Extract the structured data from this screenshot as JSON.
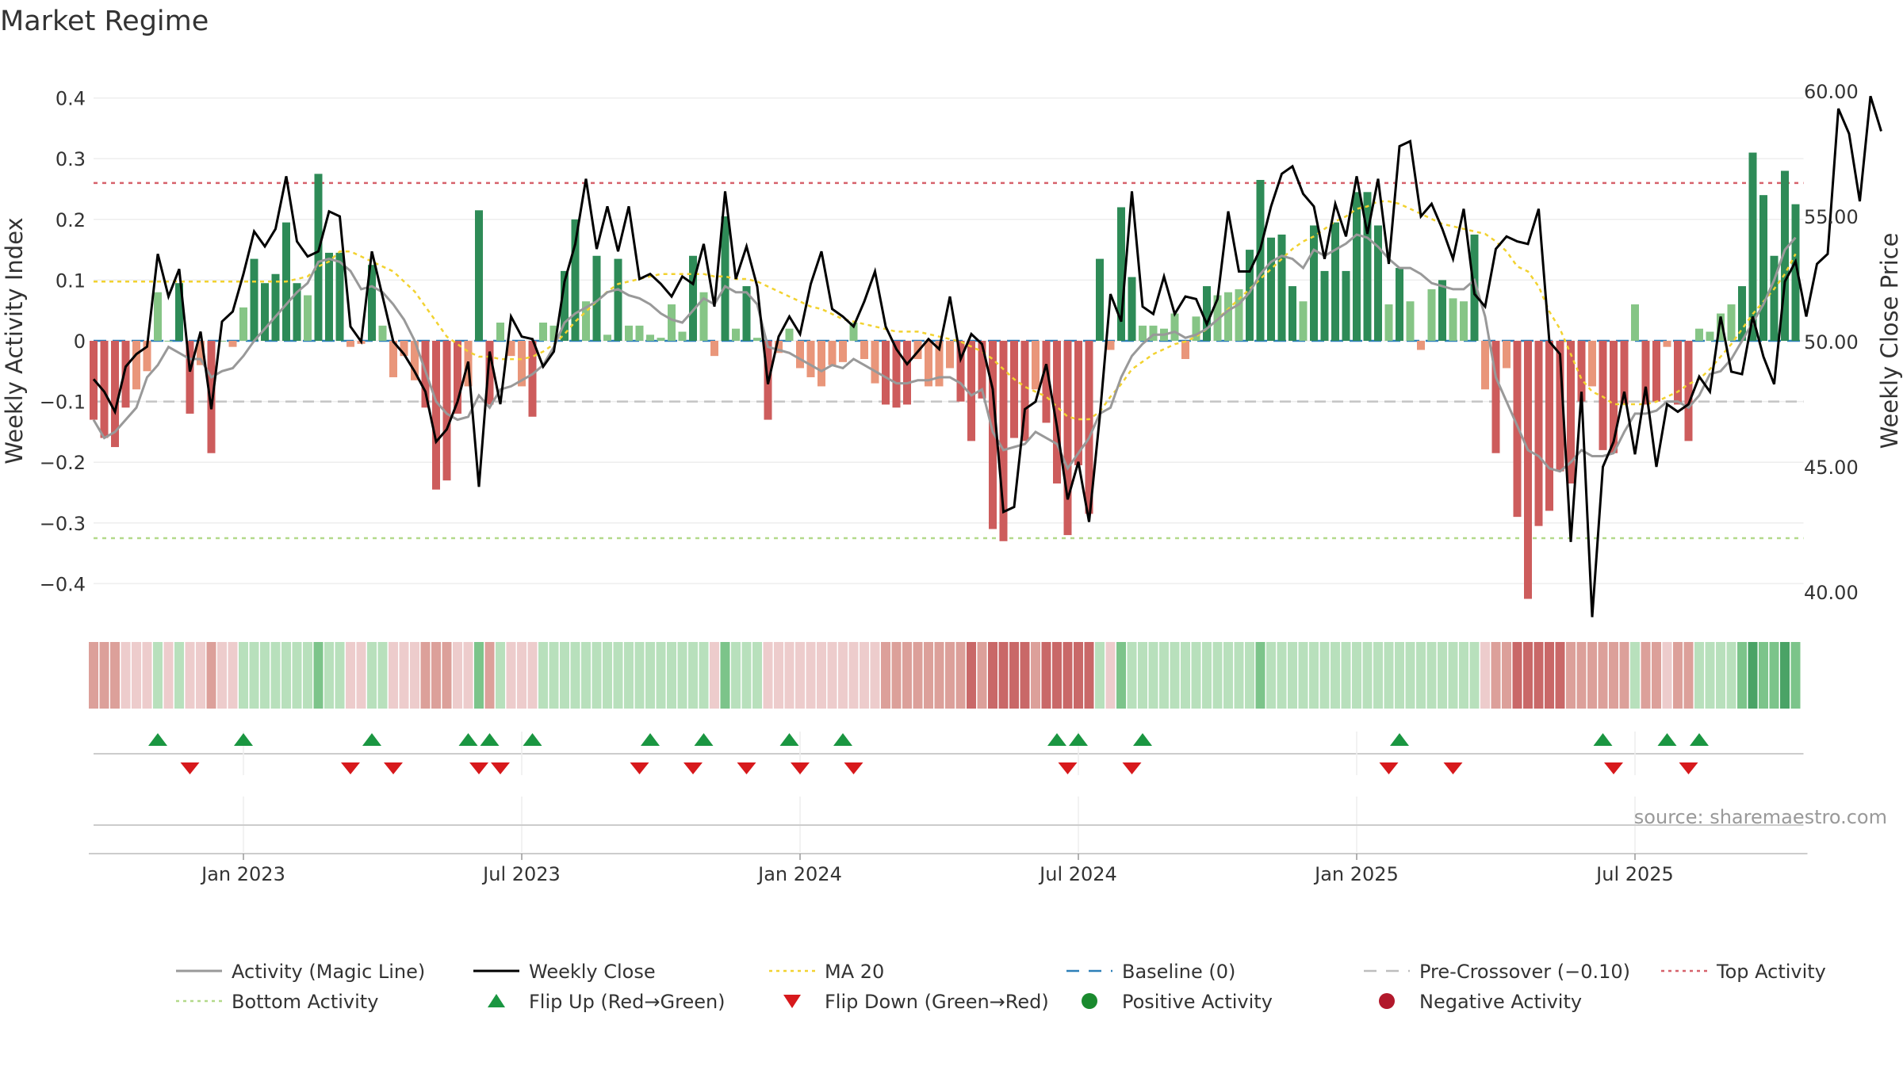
{
  "chart_data": {
    "type": "bar",
    "title": "Market Regime",
    "ylabel_left": "Weekly Activity Index",
    "ylabel_right": "Weekly Close Price",
    "source": "source: sharemaestro.com",
    "ylim_left": [
      -0.46,
      0.46
    ],
    "ylim_right": [
      37.5,
      60.5
    ],
    "yticks_left": [
      "0.4",
      "0.3",
      "0.2",
      "0.1",
      "0",
      "−0.1",
      "−0.2",
      "−0.3",
      "−0.4"
    ],
    "yticks_right": [
      "60.00",
      "55.00",
      "50.00",
      "45.00",
      "40.00"
    ],
    "x_ticks": [
      {
        "label": "Jan 2023",
        "week": 14
      },
      {
        "label": "Jul 2023",
        "week": 40
      },
      {
        "label": "Jan 2024",
        "week": 66
      },
      {
        "label": "Jul 2024",
        "week": 92
      },
      {
        "label": "Jan 2025",
        "week": 118
      },
      {
        "label": "Jul 2025",
        "week": 144
      }
    ],
    "reference_lines": {
      "top_activity": 0.26,
      "bottom_activity": -0.325,
      "pre_crossover": -0.1,
      "baseline": 0
    },
    "activity_bars": [
      -0.13,
      -0.16,
      -0.175,
      -0.11,
      -0.08,
      -0.05,
      0.08,
      0,
      0.095,
      -0.12,
      -0.04,
      -0.185,
      0,
      -0.01,
      0.055,
      0.135,
      0.095,
      0.11,
      0.195,
      0.095,
      0.075,
      0.275,
      0.145,
      0.145,
      -0.01,
      -0.005,
      0.125,
      0.025,
      -0.06,
      -0.025,
      -0.065,
      -0.11,
      -0.245,
      -0.23,
      -0.12,
      -0.075,
      0.215,
      -0.105,
      0.03,
      -0.025,
      -0.075,
      -0.125,
      0.03,
      0.025,
      0.115,
      0.2,
      0.065,
      0.14,
      0.01,
      0.135,
      0.025,
      0.025,
      0.01,
      0.005,
      0.06,
      0.015,
      0.14,
      0.08,
      -0.025,
      0.205,
      0.02,
      0.09,
      0.005,
      -0.13,
      -0.02,
      0.02,
      -0.045,
      -0.06,
      -0.075,
      -0.04,
      -0.035,
      0.03,
      -0.03,
      -0.07,
      -0.105,
      -0.11,
      -0.105,
      -0.03,
      -0.075,
      -0.075,
      -0.045,
      -0.1,
      -0.165,
      -0.095,
      -0.31,
      -0.33,
      -0.16,
      -0.165,
      -0.08,
      -0.135,
      -0.235,
      -0.32,
      -0.205,
      -0.285,
      0.135,
      -0.015,
      0.22,
      0.105,
      0.025,
      0.025,
      0.02,
      0.045,
      -0.03,
      0.04,
      0.09,
      0.075,
      0.08,
      0.085,
      0.15,
      0.265,
      0.17,
      0.175,
      0.09,
      0.065,
      0.19,
      0.115,
      0.195,
      0.115,
      0.245,
      0.245,
      0.19,
      0.06,
      0.12,
      0.065,
      -0.015,
      0.085,
      0.1,
      0.07,
      0.065,
      0.175,
      -0.08,
      -0.185,
      -0.045,
      -0.29,
      -0.425,
      -0.305,
      -0.28,
      -0.215,
      -0.235,
      -0.1,
      -0.075,
      -0.18,
      -0.185,
      -0.105,
      0.06,
      -0.105,
      -0.1,
      -0.01,
      -0.105,
      -0.165,
      0.02,
      0.015,
      0.045,
      0.06,
      0.09,
      0.31,
      0.24,
      0.14,
      0.28,
      0.225
    ],
    "magic_line": [
      -0.13,
      -0.16,
      -0.15,
      -0.13,
      -0.11,
      -0.06,
      -0.04,
      -0.01,
      -0.02,
      -0.03,
      -0.03,
      -0.06,
      -0.05,
      -0.045,
      -0.025,
      0,
      0.02,
      0.04,
      0.06,
      0.08,
      0.095,
      0.13,
      0.135,
      0.13,
      0.115,
      0.085,
      0.09,
      0.08,
      0.06,
      0.035,
      0,
      -0.05,
      -0.1,
      -0.12,
      -0.13,
      -0.125,
      -0.09,
      -0.11,
      -0.08,
      -0.075,
      -0.065,
      -0.055,
      -0.04,
      -0.01,
      0.03,
      0.045,
      0.055,
      0.065,
      0.08,
      0.085,
      0.075,
      0.07,
      0.06,
      0.045,
      0.035,
      0.03,
      0.05,
      0.07,
      0.06,
      0.09,
      0.08,
      0.08,
      0.06,
      -0.01,
      -0.015,
      -0.02,
      -0.03,
      -0.04,
      -0.05,
      -0.04,
      -0.045,
      -0.03,
      -0.04,
      -0.05,
      -0.06,
      -0.07,
      -0.07,
      -0.065,
      -0.065,
      -0.06,
      -0.06,
      -0.07,
      -0.09,
      -0.08,
      -0.15,
      -0.18,
      -0.175,
      -0.17,
      -0.15,
      -0.16,
      -0.17,
      -0.21,
      -0.185,
      -0.16,
      -0.12,
      -0.11,
      -0.06,
      -0.025,
      -0.005,
      0.01,
      0.01,
      0.015,
      0.005,
      0.01,
      0.02,
      0.035,
      0.05,
      0.06,
      0.08,
      0.11,
      0.13,
      0.14,
      0.135,
      0.12,
      0.15,
      0.14,
      0.15,
      0.16,
      0.175,
      0.17,
      0.155,
      0.135,
      0.12,
      0.12,
      0.11,
      0.095,
      0.09,
      0.085,
      0.085,
      0.1,
      0.04,
      -0.06,
      -0.1,
      -0.14,
      -0.18,
      -0.19,
      -0.21,
      -0.215,
      -0.2,
      -0.18,
      -0.19,
      -0.19,
      -0.185,
      -0.15,
      -0.12,
      -0.12,
      -0.115,
      -0.1,
      -0.1,
      -0.11,
      -0.09,
      -0.055,
      -0.05,
      -0.03,
      0.0,
      0.03,
      0.06,
      0.1,
      0.15,
      0.17
    ],
    "weekly_close": [
      48.5,
      48.0,
      47.2,
      49.0,
      49.5,
      49.8,
      53.5,
      51.8,
      52.9,
      48.8,
      50.4,
      47.3,
      50.8,
      51.2,
      52.7,
      54.4,
      53.8,
      54.5,
      56.6,
      54.0,
      53.4,
      53.6,
      55.2,
      55.0,
      50.6,
      50.0,
      53.6,
      51.8,
      50.0,
      49.5,
      48.8,
      48.0,
      46.0,
      46.5,
      47.6,
      49.2,
      44.2,
      49.6,
      47.5,
      51.0,
      50.2,
      50.1,
      49.0,
      49.6,
      52.4,
      53.9,
      56.5,
      53.7,
      55.4,
      53.6,
      55.4,
      52.5,
      52.7,
      52.3,
      51.8,
      52.6,
      52.3,
      53.9,
      51.4,
      56.0,
      52.5,
      53.8,
      52.2,
      48.3,
      50.2,
      51.0,
      50.3,
      52.3,
      53.6,
      51.3,
      51.0,
      50.6,
      51.6,
      52.8,
      50.6,
      49.7,
      49.1,
      49.6,
      50.1,
      49.7,
      51.8,
      49.3,
      50.3,
      49.9,
      48.1,
      43.2,
      43.4,
      47.3,
      47.6,
      49.1,
      46.6,
      43.7,
      45.2,
      42.8,
      47.0,
      51.9,
      50.8,
      56.0,
      51.4,
      51.1,
      52.6,
      51.1,
      51.8,
      51.7,
      50.7,
      51.7,
      55.2,
      52.8,
      52.8,
      53.7,
      55.4,
      56.7,
      57.0,
      55.9,
      55.4,
      53.3,
      55.5,
      54.2,
      56.6,
      54.3,
      56.5,
      53.1,
      57.8,
      58.0,
      55.0,
      55.5,
      54.5,
      53.3,
      55.3,
      51.9,
      51.4,
      53.7,
      54.2,
      54.0,
      53.9,
      55.3,
      50.0,
      49.5,
      42.0,
      48.0,
      39.0,
      45.0,
      46.0,
      48.0,
      45.5,
      48.2,
      45.0,
      47.5,
      47.2,
      47.5,
      48.6,
      48.0,
      51.0,
      48.8,
      48.7,
      51.0,
      49.4,
      48.3,
      52.4,
      53.2,
      51.0,
      53.1,
      53.5,
      59.3,
      58.3,
      55.6,
      59.8,
      58.4
    ],
    "ma20": [
      52.4,
      52.4,
      52.4,
      52.4,
      52.4,
      52.4,
      52.4,
      52.4,
      52.4,
      52.4,
      52.4,
      52.4,
      52.4,
      52.4,
      52.4,
      52.4,
      52.4,
      52.4,
      52.4,
      52.5,
      52.6,
      53.0,
      53.2,
      53.6,
      53.6,
      53.4,
      53.2,
      53.0,
      52.8,
      52.4,
      52.0,
      51.4,
      50.8,
      50.2,
      49.9,
      49.6,
      49.4,
      49.4,
      49.3,
      49.3,
      49.3,
      49.4,
      49.6,
      49.9,
      50.3,
      50.8,
      51.2,
      51.6,
      52.0,
      52.3,
      52.4,
      52.5,
      52.6,
      52.7,
      52.7,
      52.7,
      52.7,
      52.7,
      52.6,
      52.6,
      52.5,
      52.5,
      52.4,
      52.2,
      52.0,
      51.8,
      51.6,
      51.4,
      51.3,
      51.1,
      50.9,
      50.8,
      50.7,
      50.6,
      50.5,
      50.4,
      50.4,
      50.4,
      50.3,
      50.2,
      50.1,
      50.0,
      49.8,
      49.6,
      49.3,
      48.9,
      48.5,
      48.2,
      48.0,
      47.8,
      47.4,
      47.0,
      46.9,
      46.9,
      47.2,
      47.8,
      48.3,
      48.9,
      49.2,
      49.5,
      49.7,
      49.9,
      50.0,
      50.2,
      50.5,
      50.9,
      51.3,
      51.7,
      52.1,
      52.5,
      52.9,
      53.3,
      53.7,
      54.0,
      54.2,
      54.5,
      54.8,
      55.0,
      55.3,
      55.4,
      55.6,
      55.6,
      55.5,
      55.3,
      55.1,
      54.9,
      54.7,
      54.6,
      54.5,
      54.4,
      54.3,
      54.0,
      53.6,
      53.0,
      52.8,
      52.2,
      51.2,
      50.5,
      49.5,
      48.5,
      48.0,
      47.8,
      47.5,
      47.5,
      47.5,
      47.5,
      47.6,
      47.8,
      48.0,
      48.3,
      48.5,
      48.9,
      49.4,
      49.9,
      50.5,
      51.1,
      51.6,
      52.1,
      52.7,
      53.5
    ],
    "regime_strip": [
      -2,
      -2,
      -2,
      -1,
      -1,
      -1,
      1,
      -1,
      1,
      -1,
      -1,
      -2,
      -1,
      -1,
      1,
      1,
      1,
      1,
      1,
      1,
      1,
      2,
      1,
      1,
      -1,
      -1,
      1,
      1,
      -1,
      -1,
      -1,
      -2,
      -2,
      -2,
      -1,
      -1,
      2,
      -2,
      1,
      -1,
      -1,
      -1,
      1,
      1,
      1,
      1,
      1,
      1,
      1,
      1,
      1,
      1,
      1,
      1,
      1,
      1,
      1,
      1,
      -1,
      2,
      1,
      1,
      1,
      -1,
      -1,
      -1,
      -1,
      -1,
      -1,
      -1,
      -1,
      -1,
      -1,
      -1,
      -2,
      -2,
      -2,
      -2,
      -2,
      -2,
      -2,
      -2,
      -3,
      -2,
      -3,
      -3,
      -3,
      -3,
      -2,
      -3,
      -3,
      -3,
      -3,
      -3,
      1,
      -1,
      2,
      1,
      1,
      1,
      1,
      1,
      1,
      1,
      1,
      1,
      1,
      1,
      1,
      2,
      1,
      1,
      1,
      1,
      1,
      1,
      1,
      1,
      1,
      1,
      1,
      1,
      1,
      1,
      1,
      1,
      1,
      1,
      1,
      1,
      -1,
      -2,
      -2,
      -3,
      -3,
      -3,
      -3,
      -3,
      -2,
      -2,
      -2,
      -2,
      -2,
      -2,
      1,
      -2,
      -2,
      -1,
      -2,
      -2,
      1,
      1,
      1,
      1,
      2,
      3,
      2,
      2,
      3,
      2
    ],
    "flip_up_weeks": [
      6,
      14,
      26,
      35,
      37,
      41,
      52,
      57,
      65,
      70,
      90,
      92,
      98,
      122,
      141,
      147,
      150
    ],
    "flip_down_weeks": [
      9,
      24,
      28,
      36,
      38,
      51,
      56,
      61,
      66,
      71,
      91,
      97,
      121,
      127,
      142,
      149
    ]
  },
  "legend": [
    {
      "label": "Activity (Magic Line)",
      "kind": "line",
      "color": "#999999"
    },
    {
      "label": "Weekly Close",
      "kind": "line",
      "color": "#000000"
    },
    {
      "label": "MA 20",
      "kind": "dotted",
      "color": "#f2d230"
    },
    {
      "label": "Baseline (0)",
      "kind": "dashed",
      "color": "#2c7fb8"
    },
    {
      "label": "Pre-Crossover (−0.10)",
      "kind": "dashed",
      "color": "#bdbdbd"
    },
    {
      "label": "Top Activity",
      "kind": "dotted",
      "color": "#d6616b"
    },
    {
      "label": "Bottom Activity",
      "kind": "dotted",
      "color": "#b3d98a"
    },
    {
      "label": "Flip Up (Red→Green)",
      "kind": "tri-up",
      "color": "#1a9641"
    },
    {
      "label": "Flip Down (Green→Red)",
      "kind": "tri-down",
      "color": "#d7191c"
    },
    {
      "label": "Positive Activity",
      "kind": "dot",
      "color": "#1a8a2e"
    },
    {
      "label": "Negative Activity",
      "kind": "dot",
      "color": "#b2182b"
    }
  ],
  "colors": {
    "bar_pos_strong": "#2e8b57",
    "bar_pos_weak": "#86c586",
    "bar_neg_strong": "#cd5c5c",
    "bar_neg_weak": "#e9967a",
    "close_line": "#000000",
    "magic_line": "#999999"
  }
}
